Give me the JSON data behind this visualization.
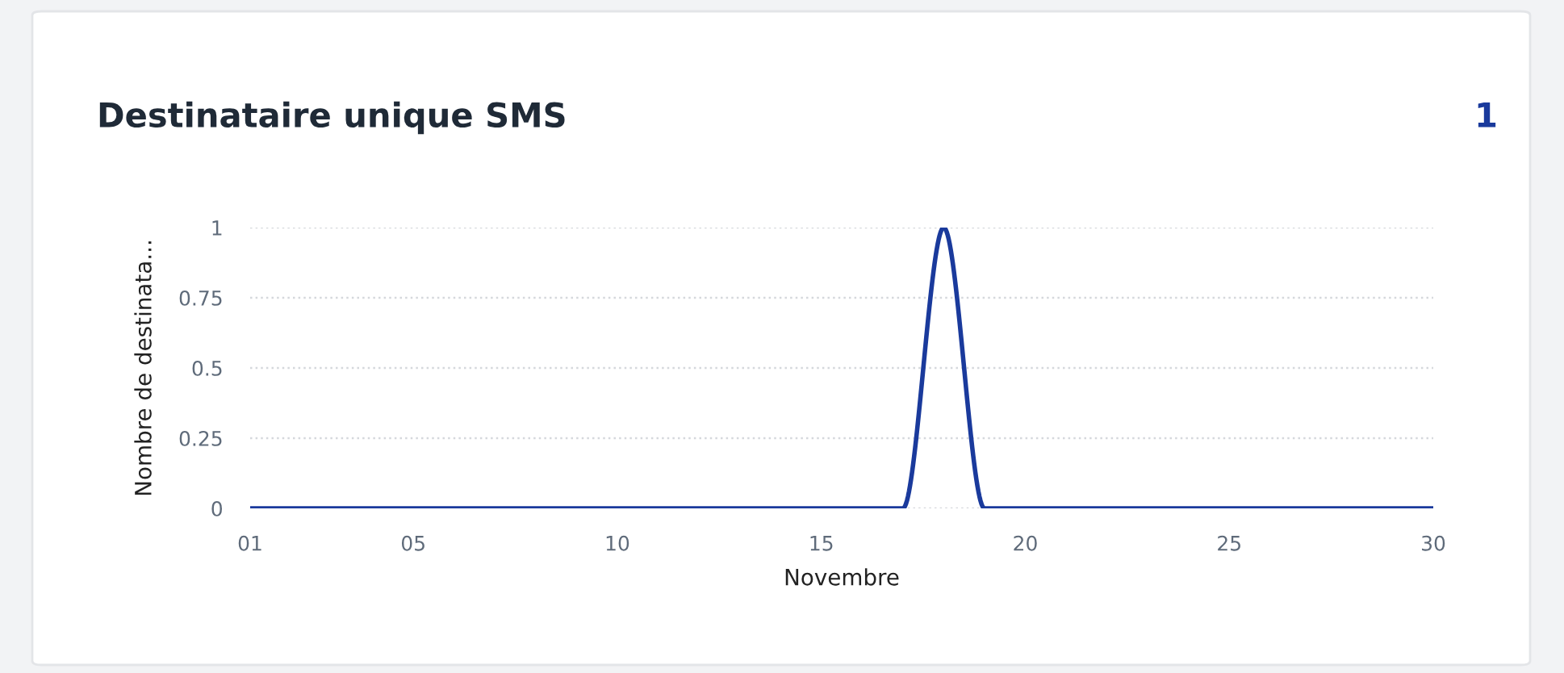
{
  "chart_data": {
    "type": "line",
    "title": "Destinataire unique SMS",
    "annotations": [
      "1"
    ],
    "xlabel": "Novembre",
    "ylabel": "Nombre de destinata...",
    "x": [
      1,
      2,
      3,
      4,
      5,
      6,
      7,
      8,
      9,
      10,
      11,
      12,
      13,
      14,
      15,
      16,
      17,
      18,
      19,
      20,
      21,
      22,
      23,
      24,
      25,
      26,
      27,
      28,
      29,
      30
    ],
    "series": [
      {
        "color": "#1a3a9c",
        "values": [
          0,
          0,
          0,
          0,
          0,
          0,
          0,
          0,
          0,
          0,
          0,
          0,
          0,
          0,
          0,
          0,
          0,
          1,
          0,
          0,
          0,
          0,
          0,
          0,
          0,
          0,
          0,
          0,
          0,
          0
        ]
      }
    ],
    "xlim": [
      1,
      30
    ],
    "xticks": [
      {
        "value": 1,
        "label": "01"
      },
      {
        "value": 5,
        "label": "05"
      },
      10,
      15,
      20,
      25,
      30
    ],
    "ylim": [
      0,
      1
    ],
    "yticks": [
      0,
      0.25,
      0.5,
      0.75,
      1
    ],
    "grid": "y",
    "legend": false,
    "marker": "none",
    "line_style": "solid"
  }
}
